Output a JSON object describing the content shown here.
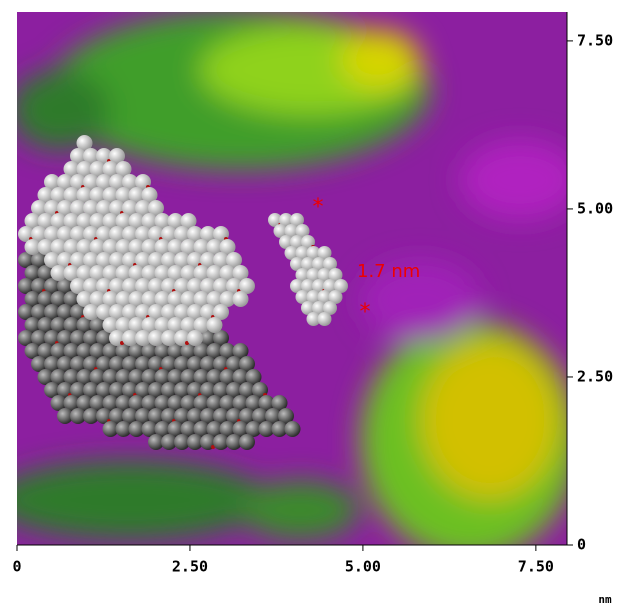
{
  "chart_data": {
    "type": "image",
    "annotation": "1.7 nm",
    "x_unit": "nm",
    "xlim": [
      0,
      7.95
    ],
    "ylim": [
      0,
      7.93
    ],
    "xticks": [
      0,
      {
        "value": 2.5,
        "label": "2.50"
      },
      {
        "value": 5,
        "label": "5.00"
      },
      {
        "value": 7.5,
        "label": "7.50"
      }
    ],
    "yticks": [
      0,
      {
        "value": 2.5,
        "label": "2.50"
      },
      {
        "value": 5,
        "label": "5.00"
      },
      {
        "value": 7.5,
        "label": "7.50"
      }
    ]
  }
}
